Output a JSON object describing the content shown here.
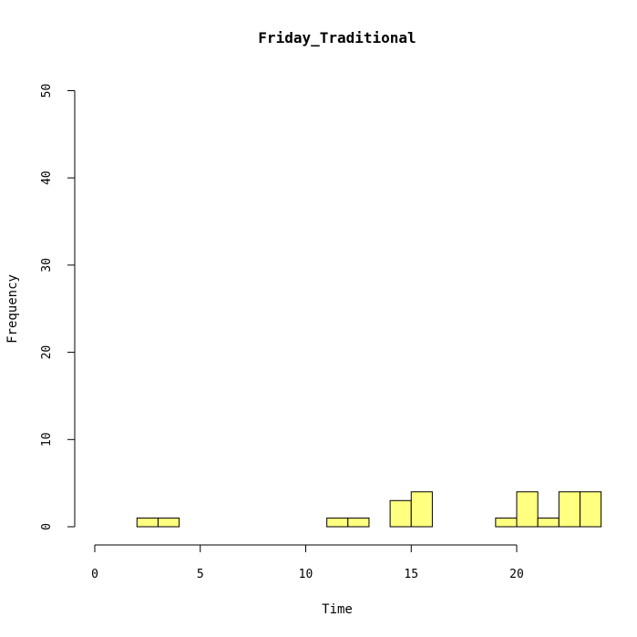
{
  "chart_data": {
    "type": "histogram",
    "title": "Friday_Traditional",
    "xlabel": "Time",
    "ylabel": "Frequency",
    "bin_width": 1,
    "bins": [
      {
        "start": 0,
        "end": 1,
        "count": 0
      },
      {
        "start": 1,
        "end": 2,
        "count": 0
      },
      {
        "start": 2,
        "end": 3,
        "count": 1
      },
      {
        "start": 3,
        "end": 4,
        "count": 1
      },
      {
        "start": 4,
        "end": 5,
        "count": 0
      },
      {
        "start": 5,
        "end": 6,
        "count": 0
      },
      {
        "start": 6,
        "end": 7,
        "count": 0
      },
      {
        "start": 7,
        "end": 8,
        "count": 0
      },
      {
        "start": 8,
        "end": 9,
        "count": 0
      },
      {
        "start": 9,
        "end": 10,
        "count": 0
      },
      {
        "start": 10,
        "end": 11,
        "count": 0
      },
      {
        "start": 11,
        "end": 12,
        "count": 1
      },
      {
        "start": 12,
        "end": 13,
        "count": 1
      },
      {
        "start": 13,
        "end": 14,
        "count": 0
      },
      {
        "start": 14,
        "end": 15,
        "count": 3
      },
      {
        "start": 15,
        "end": 16,
        "count": 4
      },
      {
        "start": 16,
        "end": 17,
        "count": 0
      },
      {
        "start": 17,
        "end": 18,
        "count": 0
      },
      {
        "start": 18,
        "end": 19,
        "count": 0
      },
      {
        "start": 19,
        "end": 20,
        "count": 1
      },
      {
        "start": 20,
        "end": 21,
        "count": 4
      },
      {
        "start": 21,
        "end": 22,
        "count": 1
      },
      {
        "start": 22,
        "end": 23,
        "count": 4
      },
      {
        "start": 23,
        "end": 24,
        "count": 4
      }
    ],
    "xlim": [
      0,
      24
    ],
    "ylim": [
      0,
      50
    ],
    "xticks": [
      0,
      5,
      10,
      15,
      20
    ],
    "yticks": [
      0,
      10,
      20,
      30,
      40,
      50
    ],
    "bar_color": "#ffff80",
    "bar_border_color": "#000000",
    "grid": false,
    "legend": "none"
  }
}
